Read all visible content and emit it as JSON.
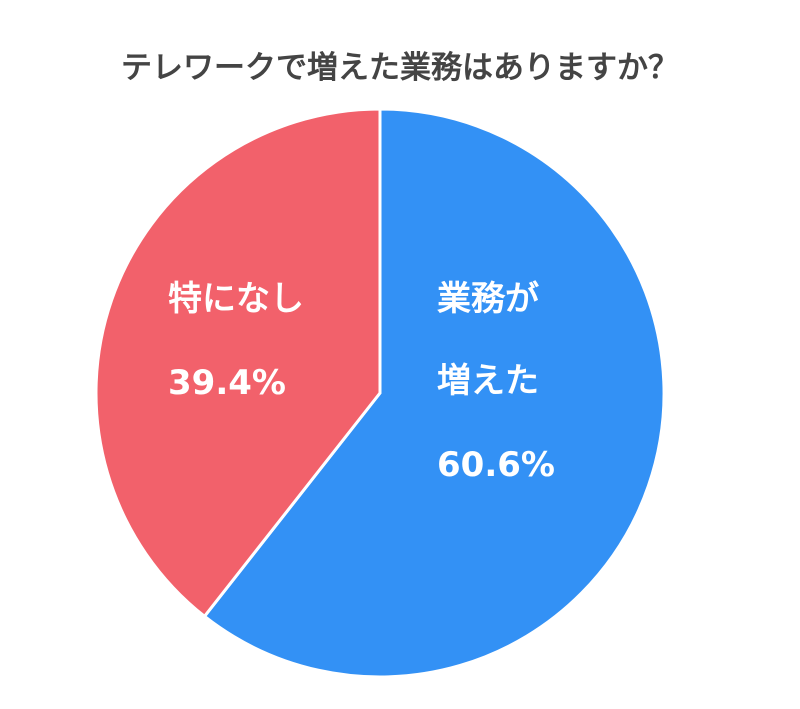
{
  "chart_data": {
    "type": "pie",
    "title": "テレワークで増えた業務はありますか？",
    "categories": [
      "業務が\n増えた",
      "特になし"
    ],
    "values": [
      60.6,
      39.4
    ],
    "value_labels": [
      "60.6%",
      "39.4%"
    ],
    "colors": [
      "#3391f5",
      "#f2616b"
    ]
  }
}
